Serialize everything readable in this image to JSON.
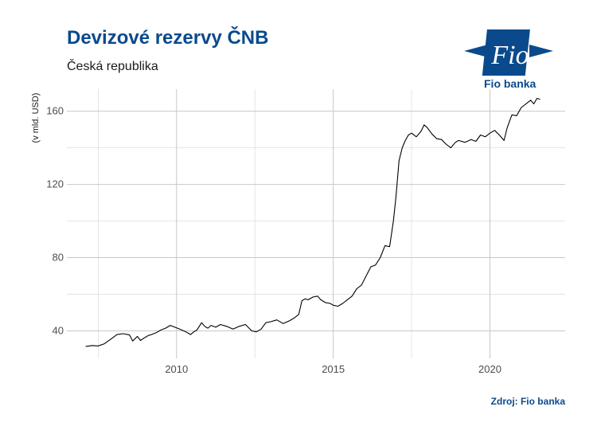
{
  "header": {
    "title": "Devizové rezervy ČNB",
    "subtitle": "Česká republika"
  },
  "logo": {
    "mark_text": "Fio",
    "caption": "Fio banka",
    "color": "#0a4a8c"
  },
  "footer": {
    "source": "Zdroj: Fio banka"
  },
  "chart_data": {
    "type": "line",
    "title": "Devizové rezervy ČNB",
    "subtitle": "Česká republika",
    "ylabel": "(v mld. USD)",
    "xlabel": "",
    "xlim": [
      2006.5,
      2022.4
    ],
    "ylim": [
      25,
      172
    ],
    "x_ticks": [
      2010,
      2015,
      2020
    ],
    "y_ticks": [
      40,
      80,
      120,
      160
    ],
    "grid": true,
    "line_color": "#000000",
    "series": [
      {
        "x": [
          2007.1,
          2007.3,
          2007.5,
          2007.7,
          2007.9,
          2008.1,
          2008.3,
          2008.5,
          2008.6,
          2008.75,
          2008.85,
          2009.0,
          2009.1,
          2009.2,
          2009.35,
          2009.5,
          2009.65,
          2009.8,
          2009.95,
          2010.1,
          2010.3,
          2010.45,
          2010.55,
          2010.65,
          2010.8,
          2010.9,
          2011.0,
          2011.1,
          2011.25,
          2011.4,
          2011.6,
          2011.8,
          2012.0,
          2012.2,
          2012.4,
          2012.55,
          2012.7,
          2012.85,
          2013.0,
          2013.2,
          2013.4,
          2013.6,
          2013.75,
          2013.9,
          2014.0,
          2014.1,
          2014.2,
          2014.35,
          2014.5,
          2014.6,
          2014.75,
          2014.9,
          2015.0,
          2015.15,
          2015.3,
          2015.45,
          2015.6,
          2015.75,
          2015.9,
          2016.05,
          2016.2,
          2016.35,
          2016.5,
          2016.65,
          2016.8,
          2016.92,
          2017.0,
          2017.1,
          2017.2,
          2017.3,
          2017.4,
          2017.5,
          2017.65,
          2017.8,
          2017.9,
          2018.0,
          2018.15,
          2018.3,
          2018.45,
          2018.6,
          2018.75,
          2018.9,
          2019.0,
          2019.2,
          2019.4,
          2019.55,
          2019.7,
          2019.85,
          2020.0,
          2020.15,
          2020.3,
          2020.45,
          2020.55,
          2020.7,
          2020.85,
          2021.0,
          2021.15,
          2021.3,
          2021.4,
          2021.5,
          2021.6
        ],
        "values": [
          31.5,
          32.0,
          31.8,
          33.0,
          35.5,
          38.0,
          38.5,
          37.8,
          34.5,
          37.0,
          34.8,
          36.5,
          37.5,
          38.0,
          39.0,
          40.5,
          41.5,
          43.0,
          42.0,
          41.0,
          39.5,
          38.0,
          39.5,
          40.5,
          44.5,
          42.5,
          41.5,
          43.0,
          42.0,
          43.5,
          42.5,
          41.0,
          42.5,
          43.5,
          40.0,
          39.5,
          41.0,
          44.5,
          45.0,
          46.0,
          44.0,
          45.5,
          47.0,
          49.0,
          56.5,
          57.5,
          57.0,
          58.5,
          59.0,
          57.0,
          55.5,
          55.0,
          54.0,
          53.5,
          55.0,
          57.0,
          59.0,
          63.0,
          65.0,
          70.0,
          75.0,
          76.0,
          80.0,
          86.5,
          86.0,
          100.0,
          113.0,
          133.0,
          140.0,
          144.0,
          147.0,
          148.0,
          146.0,
          149.0,
          152.5,
          151.0,
          147.5,
          145.0,
          144.5,
          142.0,
          140.0,
          143.0,
          144.0,
          143.0,
          144.5,
          143.5,
          147.0,
          146.0,
          148.0,
          149.5,
          147.0,
          144.0,
          151.0,
          158.0,
          157.5,
          162.0,
          164.0,
          166.0,
          164.0,
          167.0,
          166.5
        ]
      }
    ]
  }
}
